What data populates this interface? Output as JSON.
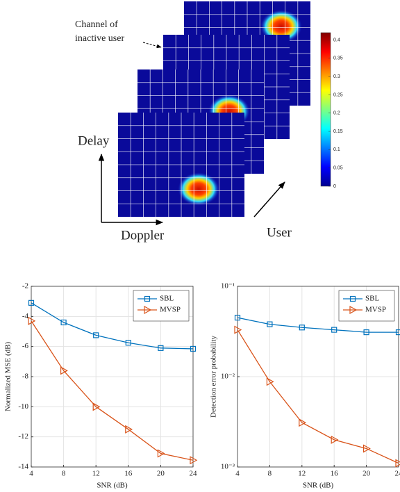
{
  "diagram": {
    "inactive_label": [
      "Channel of",
      "inactive user"
    ],
    "delay_label": "Delay",
    "doppler_label": "Doppler",
    "user_label": "User",
    "colorbar": {
      "clim": [
        0,
        0.42
      ],
      "ticks": [
        0,
        0.05,
        0.1,
        0.15,
        0.2,
        0.25,
        0.3,
        0.35,
        0.4
      ]
    }
  },
  "chart_data": [
    {
      "type": "line",
      "xlabel": "SNR (dB)",
      "ylabel": "Normalized MSE (dB)",
      "x": [
        4,
        8,
        12,
        16,
        20,
        24
      ],
      "xlim": [
        4,
        24
      ],
      "xticks": [
        4,
        8,
        12,
        16,
        20,
        24
      ],
      "ylim": [
        -14,
        -2
      ],
      "yticks": [
        -14,
        -12,
        -10,
        -8,
        -6,
        -4,
        -2
      ],
      "grid": true,
      "legend": "top-right",
      "series": [
        {
          "name": "SBL",
          "color": "#0072bd",
          "marker": "square",
          "values": [
            -3.1,
            -4.4,
            -5.25,
            -5.75,
            -6.1,
            -6.15
          ]
        },
        {
          "name": "MVSP",
          "color": "#d95319",
          "marker": "triangle-right",
          "values": [
            -4.3,
            -7.6,
            -10.0,
            -11.5,
            -13.1,
            -13.55
          ]
        }
      ]
    },
    {
      "type": "line",
      "xlabel": "SNR (dB)",
      "ylabel": "Detection error probability",
      "x": [
        4,
        8,
        12,
        16,
        20,
        24
      ],
      "xlim": [
        4,
        24
      ],
      "xticks": [
        4,
        8,
        12,
        16,
        20,
        24
      ],
      "ylim": [
        0.001,
        0.1
      ],
      "ylog": true,
      "yticks": [
        {
          "value": 0.001,
          "label": "10⁻³"
        },
        {
          "value": 0.01,
          "label": "10⁻²"
        },
        {
          "value": 0.1,
          "label": "10⁻¹"
        }
      ],
      "grid": true,
      "legend": "top-right",
      "series": [
        {
          "name": "SBL",
          "color": "#0072bd",
          "marker": "square",
          "values": [
            0.045,
            0.038,
            0.035,
            0.033,
            0.031,
            0.031
          ]
        },
        {
          "name": "MVSP",
          "color": "#d95319",
          "marker": "triangle-right",
          "values": [
            0.033,
            0.0088,
            0.0031,
            0.002,
            0.0016,
            0.0011
          ]
        }
      ]
    }
  ]
}
